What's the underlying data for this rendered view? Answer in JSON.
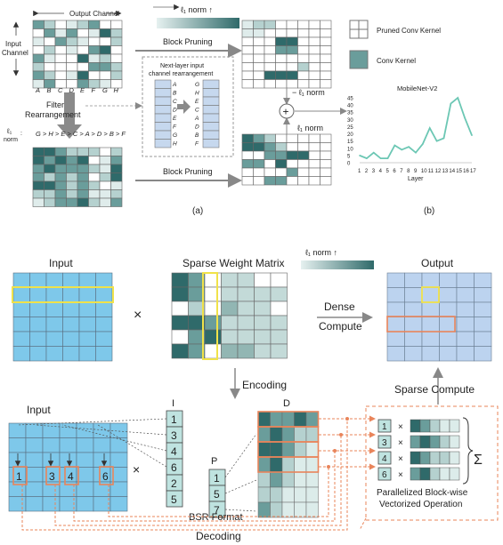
{
  "top": {
    "output_channel": "Output Channel",
    "input_channel_l1": "Input",
    "input_channel_l2": "Channel",
    "col_letters": [
      "A",
      "B",
      "C",
      "D",
      "E",
      "F",
      "G",
      "H"
    ],
    "filter_l1": "Filter",
    "filter_l2": "Rearrangement",
    "l1_norm_prefix_l1": "ℓ₁",
    "l1_norm_prefix_l2": "norm",
    "order": "G > H > E > C > A > D > B > F",
    "l1_norm_up": "ℓ₁ norm ↑",
    "block_pruning": "Block Pruning",
    "nextlayer_l1": "Next-layer input",
    "nextlayer_l2": "channel rearrangement",
    "left_letters": [
      "A",
      "B",
      "C",
      "D",
      "E",
      "F",
      "G",
      "H"
    ],
    "right_letters": [
      "G",
      "H",
      "E",
      "C",
      "A",
      "D",
      "B",
      "F"
    ],
    "minus_l1": "− ℓ₁ norm",
    "plus_l1": "ℓ₁ norm",
    "legend_pruned": "Pruned Conv Kernel",
    "legend_conv": "Conv Kernel",
    "label_a": "(a)",
    "label_b": "(b)"
  },
  "chart_data": {
    "type": "line",
    "title": "MobileNet-V2",
    "xlabel": "Layer",
    "ylabel": "",
    "x": [
      1,
      2,
      3,
      4,
      5,
      6,
      7,
      8,
      9,
      10,
      11,
      12,
      13,
      14,
      15,
      16,
      17
    ],
    "values": [
      5,
      3,
      7,
      3,
      3,
      12,
      9,
      11,
      7,
      13,
      24,
      15,
      17,
      41,
      45,
      31,
      19
    ],
    "ylim": [
      0,
      45
    ],
    "yticks": [
      0,
      5,
      10,
      15,
      20,
      25,
      30,
      35,
      40,
      45
    ],
    "color": "#6cc7b4"
  },
  "bottom": {
    "input": "Input",
    "times": "×",
    "sparse_weight_matrix": "Sparse Weight Matrix",
    "l1_norm_up": "ℓ₁ norm ↑",
    "output": "Output",
    "dense": "Dense",
    "compute": "Compute",
    "encoding": "Encoding",
    "sparse_compute": "Sparse Compute",
    "input2": "Input",
    "I": "I",
    "P": "P",
    "D": "D",
    "I_vals": [
      "1",
      "3",
      "4",
      "6",
      "2",
      "5"
    ],
    "P_vals": [
      "1",
      "5",
      "7"
    ],
    "bsr_format": "BSR Format",
    "row_nums": [
      "1",
      "3",
      "4",
      "6"
    ],
    "op_nums": [
      "1",
      "3",
      "4",
      "6"
    ],
    "sigma": "Σ",
    "parallel_l1": "Parallelized Block-wise",
    "parallel_l2": "Vectorized Operation",
    "decoding": "Decoding"
  },
  "colors": {
    "dark": "#2f6a6a",
    "mid": "#6a9d9b",
    "light": "#b5d1cf",
    "blue": "#7ec8ea",
    "lightblue": "#bcd3ef",
    "orange": "#e9845a",
    "yellow": "#f0e24a"
  }
}
